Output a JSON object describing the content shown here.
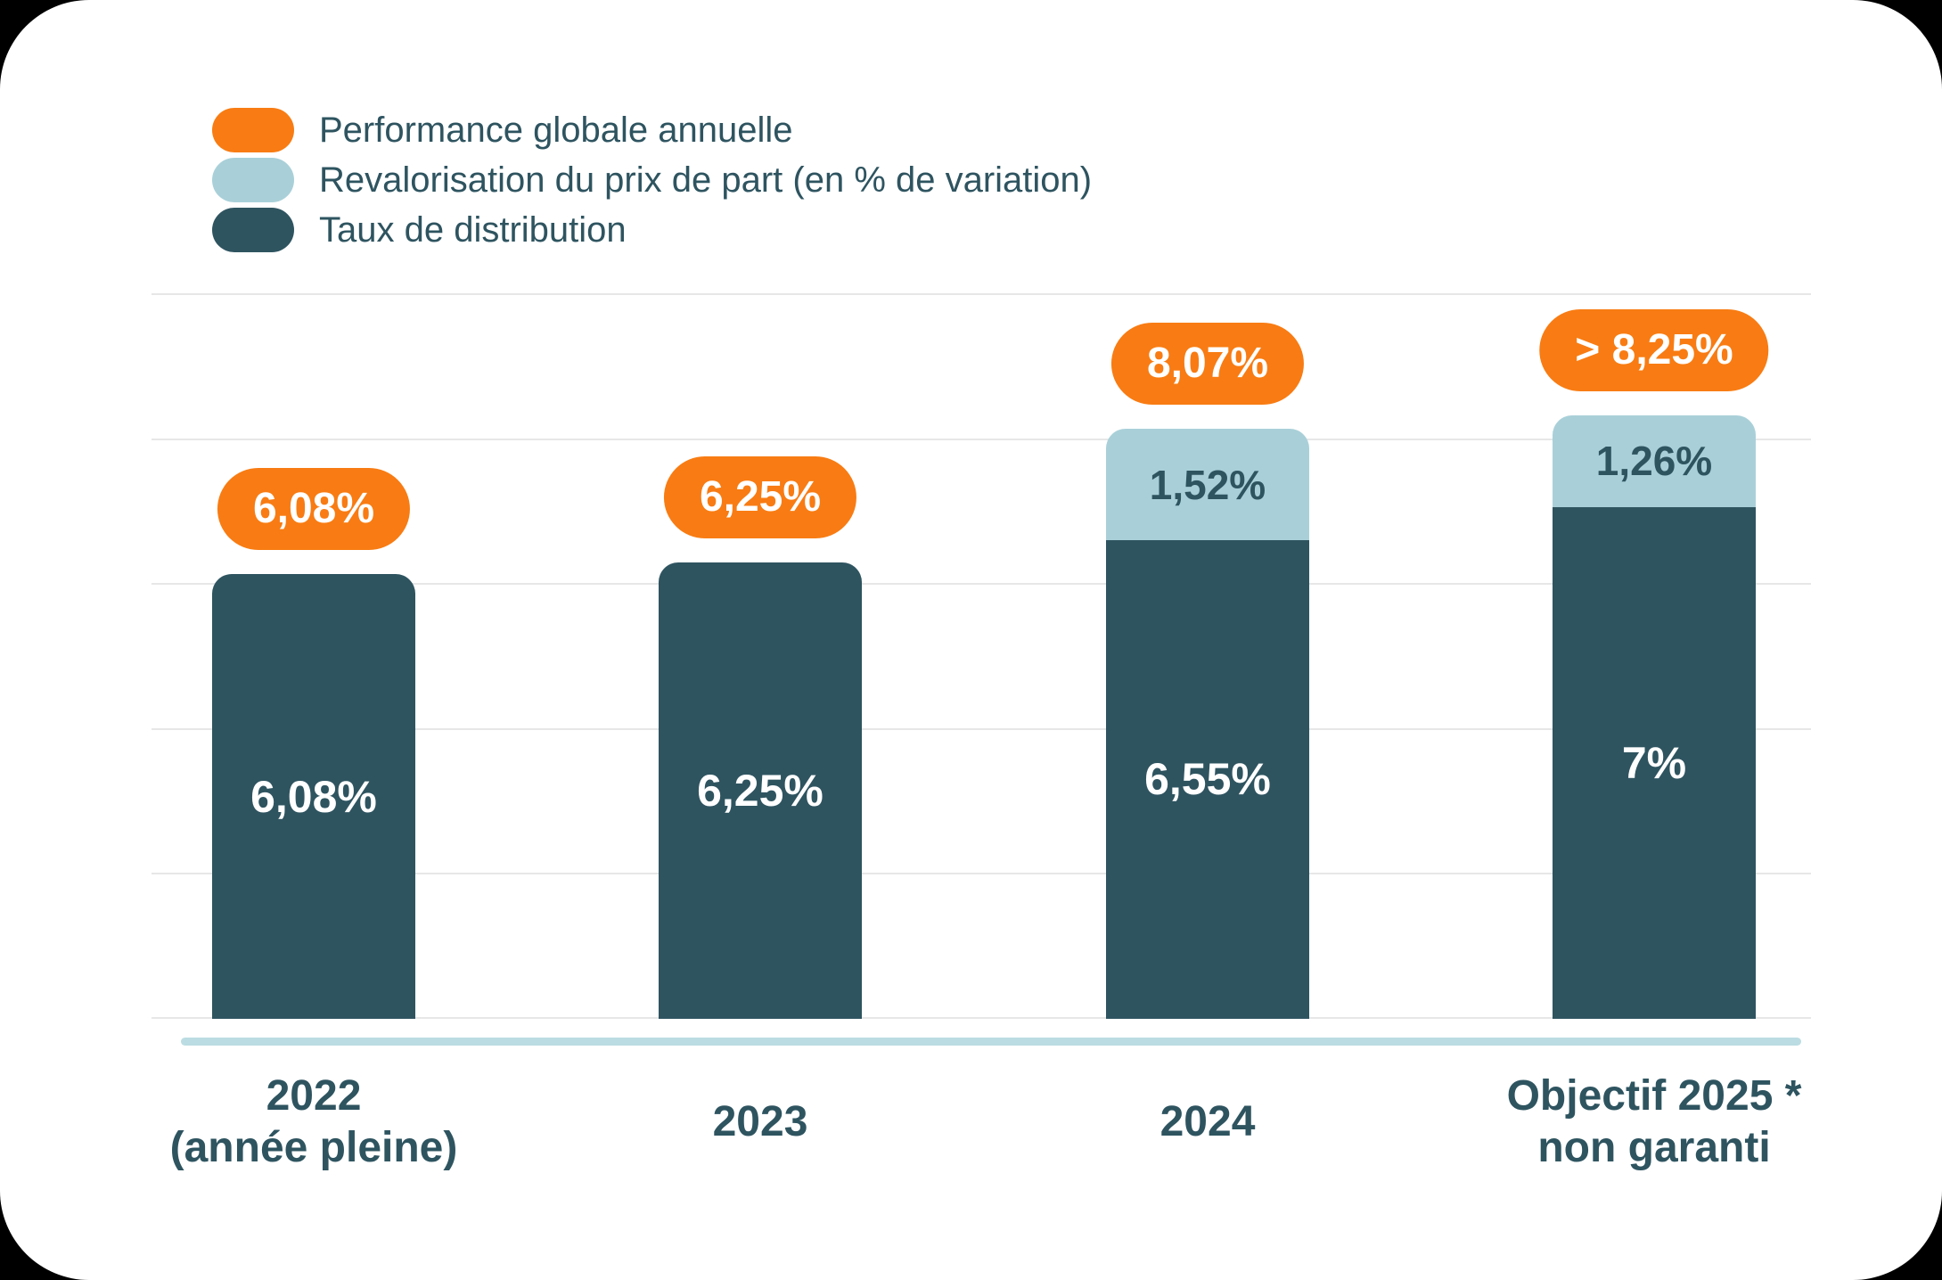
{
  "legend": {
    "items": [
      {
        "label": "Performance globale annuelle",
        "swatch": "orange",
        "icon": "legend-swatch-pill"
      },
      {
        "label": "Revalorisation du prix de part (en % de variation)",
        "swatch": "light_blue",
        "icon": "legend-swatch-pill"
      },
      {
        "label": "Taux de distribution",
        "swatch": "dark_teal",
        "icon": "legend-swatch-pill"
      }
    ]
  },
  "colors": {
    "orange": "#F87C13",
    "light_blue": "#A9D0D9",
    "dark_teal": "#2E5460",
    "axis_line": "#BBDCE2",
    "gridline": "#E7E7E7",
    "text": "#2E5460",
    "card_bg": "#FFFFFF",
    "page_bg": "#000000"
  },
  "chart_data": {
    "type": "bar",
    "stacked": true,
    "unit": "%",
    "grid": true,
    "legend_position": "top-left",
    "categories": [
      "2022 (année pleine)",
      "2023",
      "2024",
      "Objectif 2025 * non garanti"
    ],
    "series": [
      {
        "name": "Taux de distribution",
        "color": "#2E5460",
        "values": [
          6.08,
          6.25,
          6.55,
          7
        ]
      },
      {
        "name": "Revalorisation du prix de part (en % de variation)",
        "color": "#A9D0D9",
        "values": [
          0,
          0,
          1.52,
          1.26
        ]
      },
      {
        "name": "Performance globale annuelle (total badge)",
        "color": "#F87C13",
        "values": [
          6.08,
          6.25,
          8.07,
          8.25
        ]
      }
    ],
    "bars": [
      {
        "badge": "6,08%",
        "dark_label": "6,08%",
        "dark_value": 6.08,
        "light_label": "",
        "light_value": 0,
        "year_line1": "2022",
        "year_line2": "(année pleine)"
      },
      {
        "badge": "6,25%",
        "dark_label": "6,25%",
        "dark_value": 6.25,
        "light_label": "",
        "light_value": 0,
        "year_line1": "2023",
        "year_line2": ""
      },
      {
        "badge": "8,07%",
        "dark_label": "6,55%",
        "dark_value": 6.55,
        "light_label": "1,52%",
        "light_value": 1.52,
        "year_line1": "2024",
        "year_line2": ""
      },
      {
        "badge": "> 8,25%",
        "dark_label": "7%",
        "dark_value": 7,
        "light_label": "1,26%",
        "light_value": 1.26,
        "year_line1": "Objectif 2025 *",
        "year_line2": "non garanti"
      }
    ]
  }
}
